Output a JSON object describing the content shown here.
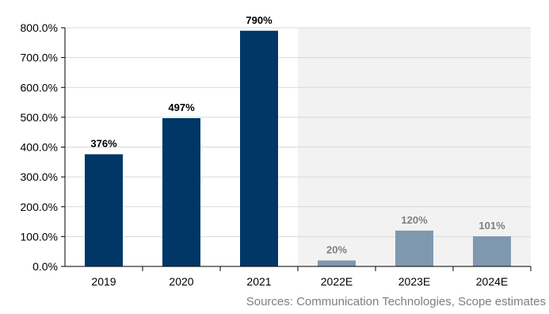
{
  "chart_data": {
    "type": "bar",
    "categories": [
      "2019",
      "2020",
      "2021",
      "2022E",
      "2023E",
      "2024E"
    ],
    "values": [
      376,
      497,
      790,
      20,
      120,
      101
    ],
    "data_labels": [
      "376%",
      "497%",
      "790%",
      "20%",
      "120%",
      "101%"
    ],
    "estimate_flags": [
      false,
      false,
      false,
      true,
      true,
      true
    ],
    "title": "",
    "xlabel": "",
    "ylabel": "",
    "ylim": [
      0,
      800
    ],
    "yticks": [
      0,
      100,
      200,
      300,
      400,
      500,
      600,
      700,
      800
    ],
    "ytick_labels": [
      "0.0%",
      "100.0%",
      "200.0%",
      "300.0%",
      "400.0%",
      "500.0%",
      "600.0%",
      "700.0%",
      "800.0%"
    ],
    "grid": true,
    "colors": {
      "actual_bar": "#003767",
      "estimate_bar": "#7f98b0",
      "actual_label": "#000000",
      "estimate_label": "#808080",
      "estimate_background": "#f2f2f2",
      "gridline": "#d9d9d9"
    }
  },
  "source": "Sources: Communication Technologies, Scope estimates"
}
